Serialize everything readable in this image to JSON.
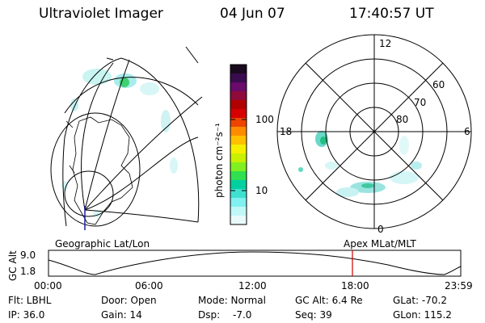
{
  "header": {
    "instrument": "Ultraviolet Imager",
    "date": "04 Jun 07",
    "time": "17:40:57 UT"
  },
  "geo_panel": {
    "label": "Geographic Lat/Lon"
  },
  "colorbar": {
    "unit_label": "photon cm⁻²s⁻¹",
    "tick_labels": [
      "100",
      "10"
    ],
    "colors": [
      "#1a0a1e",
      "#3a0b4e",
      "#6a0a6a",
      "#8e0a3a",
      "#b00000",
      "#d60000",
      "#ee4400",
      "#ff8c00",
      "#ffc000",
      "#f4f000",
      "#c8f000",
      "#80f020",
      "#30e050",
      "#00d0a0",
      "#40e0d0",
      "#80f0f0",
      "#c0f8f8",
      "#e8fafa"
    ]
  },
  "polar_plot": {
    "mlt_labels": {
      "top": "12",
      "left": "18",
      "right": "6",
      "bottom": "0"
    },
    "lat_labels": [
      "60",
      "70",
      "80"
    ],
    "label": "Apex MLat/MLT"
  },
  "altitude_plot": {
    "ylabel": "GC Alt",
    "y_ticks": [
      "9.0",
      "1.8"
    ],
    "x_ticks": [
      "00:00",
      "06:00",
      "12:00",
      "18:00",
      "23:59"
    ],
    "marker_time": "17:40",
    "marker_color": "#cc0000"
  },
  "info": {
    "filter": "Flt: LBHL",
    "door": "Door: Open",
    "mode": "Mode: Normal",
    "gc_alt": "GC Alt: 6.4 Re",
    "glat": "GLat: -70.2",
    "ip": "IP: 36.0",
    "gain": "Gain: 14",
    "dsp_label": "Dsp:",
    "dsp_value": "-7.0",
    "seq": "Seq: 39",
    "glon": "GLon: 115.2"
  }
}
